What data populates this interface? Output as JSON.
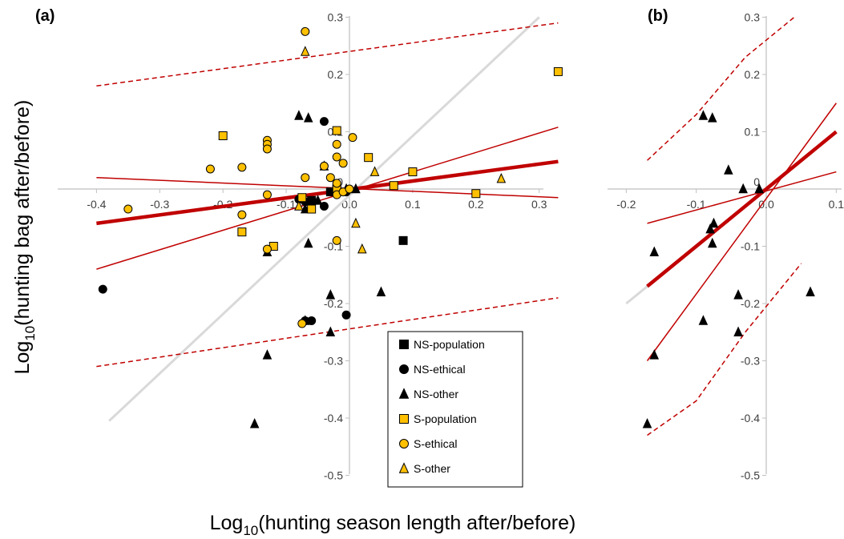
{
  "chart_data": [
    {
      "type": "scatter",
      "panel_label": "(a)",
      "xlim": [
        -0.4,
        0.33
      ],
      "ylim": [
        -0.5,
        0.3
      ],
      "x_ticks": [
        -0.4,
        -0.3,
        -0.2,
        -0.1,
        0.0,
        0.1,
        0.2,
        0.3
      ],
      "x_tick_labels": [
        "-0.4",
        "-0.3",
        "-0.2",
        "-0.1",
        "0.0",
        "0.1",
        "0.2",
        "0.3"
      ],
      "y_ticks": [
        0.3,
        0.2,
        0.1,
        0,
        -0.1,
        -0.2,
        -0.3,
        -0.4,
        -0.5
      ],
      "y_tick_labels": [
        "0.3",
        "0.2",
        "0.1",
        "0",
        "-0.1",
        "-0.2",
        "-0.3",
        "-0.4",
        "-0.5"
      ],
      "xlabel": "Log10(hunting season length after/before)",
      "ylabel": "Log10(hunting bag after/before)",
      "series": [
        {
          "name": "NS-population",
          "marker": "square",
          "fill": "#000000",
          "points": [
            [
              -0.03,
              -0.005
            ],
            [
              0.085,
              -0.09
            ],
            [
              -0.06,
              -0.02
            ],
            [
              -0.02,
              0.0
            ]
          ]
        },
        {
          "name": "NS-ethical",
          "marker": "circle",
          "fill": "#000000",
          "points": [
            [
              -0.39,
              -0.175
            ],
            [
              -0.04,
              0.118
            ],
            [
              -0.08,
              -0.018
            ],
            [
              -0.07,
              -0.022
            ],
            [
              -0.04,
              -0.03
            ],
            [
              -0.06,
              -0.23
            ],
            [
              -0.07,
              -0.23
            ],
            [
              -0.005,
              -0.22
            ],
            [
              -0.005,
              -0.005
            ]
          ]
        },
        {
          "name": "NS-other",
          "marker": "triangle",
          "fill": "#000000",
          "points": [
            [
              -0.08,
              0.128
            ],
            [
              -0.065,
              0.124
            ],
            [
              -0.04,
              0.04
            ],
            [
              -0.005,
              0.0
            ],
            [
              -0.13,
              -0.11
            ],
            [
              -0.065,
              -0.095
            ],
            [
              -0.13,
              -0.29
            ],
            [
              -0.15,
              -0.41
            ],
            [
              -0.07,
              -0.23
            ],
            [
              -0.03,
              -0.185
            ],
            [
              -0.03,
              -0.25
            ],
            [
              0.05,
              -0.18
            ],
            [
              0.01,
              0.0
            ],
            [
              -0.05,
              -0.02
            ],
            [
              -0.07,
              -0.035
            ]
          ]
        },
        {
          "name": "S-population",
          "marker": "square",
          "fill": "#FFC000",
          "points": [
            [
              -0.2,
              0.093
            ],
            [
              -0.02,
              0.102
            ],
            [
              0.33,
              0.205
            ],
            [
              0.03,
              0.055
            ],
            [
              0.07,
              0.006
            ],
            [
              0.1,
              0.03
            ],
            [
              0.2,
              -0.008
            ],
            [
              -0.17,
              -0.075
            ],
            [
              -0.12,
              -0.1
            ],
            [
              -0.075,
              -0.015
            ],
            [
              -0.06,
              -0.035
            ],
            [
              -0.02,
              0.0
            ]
          ]
        },
        {
          "name": "S-ethical",
          "marker": "circle",
          "fill": "#FFC000",
          "points": [
            [
              -0.07,
              0.275
            ],
            [
              -0.35,
              -0.035
            ],
            [
              -0.22,
              0.035
            ],
            [
              -0.17,
              0.038
            ],
            [
              -0.13,
              0.085
            ],
            [
              -0.13,
              0.078
            ],
            [
              -0.13,
              0.07
            ],
            [
              -0.13,
              -0.01
            ],
            [
              -0.07,
              0.02
            ],
            [
              -0.04,
              0.04
            ],
            [
              -0.03,
              0.02
            ],
            [
              -0.02,
              0.078
            ],
            [
              -0.02,
              0.056
            ],
            [
              -0.01,
              0.045
            ],
            [
              0.005,
              0.09
            ],
            [
              -0.02,
              -0.09
            ],
            [
              -0.02,
              -0.01
            ],
            [
              -0.01,
              -0.005
            ],
            [
              0.0,
              0.0
            ],
            [
              -0.17,
              -0.045
            ],
            [
              -0.13,
              -0.105
            ],
            [
              -0.075,
              -0.235
            ],
            [
              -0.02,
              0.01
            ]
          ]
        },
        {
          "name": "S-other",
          "marker": "triangle",
          "fill": "#FFC000",
          "points": [
            [
              -0.07,
              0.24
            ],
            [
              0.04,
              0.03
            ],
            [
              0.01,
              -0.06
            ],
            [
              0.02,
              -0.105
            ],
            [
              0.24,
              0.018
            ],
            [
              -0.08,
              -0.03
            ]
          ]
        }
      ],
      "lines": [
        {
          "role": "1:1",
          "color": "#d9d9d9",
          "width": 3,
          "dash": false,
          "points": [
            [
              -0.38,
              -0.405
            ],
            [
              0.3,
              0.3
            ]
          ]
        },
        {
          "role": "fit",
          "color": "#c00000",
          "width": 4.5,
          "dash": false,
          "points": [
            [
              -0.4,
              -0.06
            ],
            [
              0.33,
              0.048
            ]
          ]
        },
        {
          "role": "ci",
          "color": "#c00000",
          "width": 1.5,
          "dash": false,
          "points": [
            [
              -0.4,
              0.02
            ],
            [
              0.33,
              -0.015
            ]
          ]
        },
        {
          "role": "ci",
          "color": "#c00000",
          "width": 1.5,
          "dash": false,
          "points": [
            [
              -0.4,
              -0.14
            ],
            [
              0.33,
              0.108
            ]
          ]
        },
        {
          "role": "pi",
          "color": "#c00000",
          "width": 1.5,
          "dash": true,
          "points": [
            [
              -0.4,
              0.18
            ],
            [
              0.33,
              0.29
            ]
          ]
        },
        {
          "role": "pi",
          "color": "#c00000",
          "width": 1.5,
          "dash": true,
          "points": [
            [
              -0.4,
              -0.31
            ],
            [
              0.33,
              -0.19
            ]
          ]
        }
      ],
      "legend": {
        "placement": "lower-right",
        "entries": [
          {
            "label": "NS-population",
            "marker": "square",
            "fill": "#000000"
          },
          {
            "label": "NS-ethical",
            "marker": "circle",
            "fill": "#000000"
          },
          {
            "label": "NS-other",
            "marker": "triangle",
            "fill": "#000000"
          },
          {
            "label": "S-population",
            "marker": "square",
            "fill": "#FFC000"
          },
          {
            "label": "S-ethical",
            "marker": "circle",
            "fill": "#FFC000"
          },
          {
            "label": "S-other",
            "marker": "triangle",
            "fill": "#FFC000"
          }
        ]
      }
    },
    {
      "type": "scatter",
      "panel_label": "(b)",
      "xlim": [
        -0.2,
        0.1
      ],
      "ylim": [
        -0.5,
        0.3
      ],
      "x_ticks": [
        -0.2,
        -0.1,
        0.0,
        0.1
      ],
      "x_tick_labels": [
        "-0.2",
        "-0.1",
        "0.0",
        "0.1"
      ],
      "y_ticks": [
        0.3,
        0.2,
        0.1,
        0,
        -0.1,
        -0.2,
        -0.3,
        -0.4,
        -0.5
      ],
      "y_tick_labels": [
        "0.3",
        "0.2",
        "0.1",
        "0",
        "-0.1",
        "-0.2",
        "-0.3",
        "-0.4",
        "-0.5"
      ],
      "series": [
        {
          "name": "NS-other",
          "marker": "triangle",
          "fill": "#000000",
          "points": [
            [
              -0.09,
              0.128
            ],
            [
              -0.077,
              0.124
            ],
            [
              -0.054,
              0.033
            ],
            [
              -0.033,
              0.0
            ],
            [
              -0.08,
              -0.07
            ],
            [
              -0.075,
              -0.06
            ],
            [
              -0.16,
              -0.11
            ],
            [
              -0.077,
              -0.095
            ],
            [
              -0.16,
              -0.29
            ],
            [
              -0.17,
              -0.41
            ],
            [
              -0.09,
              -0.23
            ],
            [
              -0.04,
              -0.185
            ],
            [
              -0.04,
              -0.25
            ],
            [
              0.063,
              -0.18
            ],
            [
              -0.01,
              0.0
            ]
          ]
        }
      ],
      "lines": [
        {
          "role": "1:1",
          "color": "#d9d9d9",
          "width": 3,
          "dash": false,
          "points": [
            [
              -0.2,
              -0.2
            ],
            [
              0.1,
              0.1
            ]
          ]
        },
        {
          "role": "fit",
          "color": "#c00000",
          "width": 4.5,
          "dash": false,
          "points": [
            [
              -0.17,
              -0.17
            ],
            [
              0.1,
              0.1
            ]
          ]
        },
        {
          "role": "ci",
          "color": "#c00000",
          "width": 1.5,
          "dash": false,
          "points": [
            [
              -0.17,
              -0.3
            ],
            [
              0.1,
              0.15
            ]
          ]
        },
        {
          "role": "ci",
          "color": "#c00000",
          "width": 1.5,
          "dash": false,
          "points": [
            [
              -0.17,
              -0.06
            ],
            [
              0.1,
              0.03
            ]
          ]
        },
        {
          "role": "pi",
          "color": "#c00000",
          "width": 1.5,
          "dash": true,
          "points": [
            [
              -0.17,
              0.05
            ],
            [
              -0.1,
              0.13
            ],
            [
              -0.03,
              0.23
            ],
            [
              0.04,
              0.3
            ]
          ]
        },
        {
          "role": "pi",
          "color": "#c00000",
          "width": 1.5,
          "dash": true,
          "points": [
            [
              -0.17,
              -0.43
            ],
            [
              -0.1,
              -0.37
            ],
            [
              -0.03,
              -0.25
            ],
            [
              0.05,
              -0.13
            ]
          ]
        }
      ]
    }
  ]
}
